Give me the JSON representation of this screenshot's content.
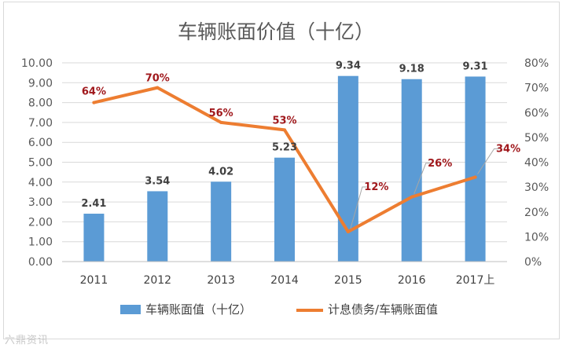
{
  "chart_data": {
    "type": "bar+line",
    "title": "车辆账面价值（十亿）",
    "categories": [
      "2011",
      "2012",
      "2013",
      "2014",
      "2015",
      "2016",
      "2017上"
    ],
    "series": [
      {
        "name": "车辆账面值（十亿）",
        "type": "bar",
        "axis": "left",
        "values": [
          2.41,
          3.54,
          4.02,
          5.23,
          9.34,
          9.18,
          9.31
        ],
        "labels": [
          "2.41",
          "3.54",
          "4.02",
          "5.23",
          "9.34",
          "9.18",
          "9.31"
        ],
        "color": "#5b9bd5"
      },
      {
        "name": "计息债务/车辆账面值",
        "type": "line",
        "axis": "right",
        "values": [
          64,
          70,
          56,
          53,
          12,
          26,
          34
        ],
        "labels": [
          "64%",
          "70%",
          "56%",
          "53%",
          "12%",
          "26%",
          "34%"
        ],
        "color": "#ed7d31"
      }
    ],
    "left_axis": {
      "ylim": [
        0,
        10
      ],
      "ticks": [
        "0.00",
        "1.00",
        "2.00",
        "3.00",
        "4.00",
        "5.00",
        "6.00",
        "7.00",
        "8.00",
        "9.00",
        "10.00"
      ]
    },
    "right_axis": {
      "ylim": [
        0,
        80
      ],
      "ticks": [
        "0%",
        "10%",
        "20%",
        "30%",
        "40%",
        "50%",
        "60%",
        "70%",
        "80%"
      ]
    },
    "grid": true,
    "legend": "bottom",
    "label_color": "#a0181c"
  },
  "watermark": "六鼎资讯"
}
